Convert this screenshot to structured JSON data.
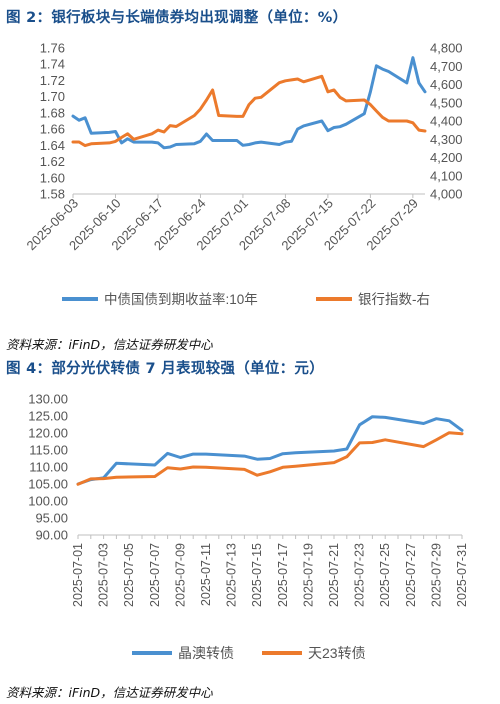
{
  "figure1": {
    "title": "图 2：银行板块与长端债券均出现调整（单位：%）",
    "source": "资料来源：iFinD，信达证券研发中心",
    "chart_data": {
      "type": "line",
      "x_ticks": [
        "2025-06-03",
        "2025-06-10",
        "2025-06-17",
        "2025-06-24",
        "2025-07-01",
        "2025-07-08",
        "2025-07-15",
        "2025-07-22",
        "2025-07-29"
      ],
      "y_left": {
        "min": 1.58,
        "max": 1.76,
        "ticks": [
          "1.58",
          "1.60",
          "1.62",
          "1.64",
          "1.66",
          "1.68",
          "1.70",
          "1.72",
          "1.74",
          "1.76"
        ]
      },
      "y_right": {
        "min": 4000,
        "max": 4800,
        "ticks": [
          "4,000",
          "4,100",
          "4,200",
          "4,300",
          "4,400",
          "4,500",
          "4,600",
          "4,700",
          "4,800"
        ]
      },
      "grid": false,
      "legend_position": "bottom",
      "series": [
        {
          "name": "中债国债到期收益率:10年",
          "axis": "left",
          "color": "#4a90d0",
          "values": [
            [
              "2025-06-03",
              1.676
            ],
            [
              "2025-06-04",
              1.671
            ],
            [
              "2025-06-05",
              1.674
            ],
            [
              "2025-06-06",
              1.655
            ],
            [
              "2025-06-09",
              1.656
            ],
            [
              "2025-06-10",
              1.657
            ],
            [
              "2025-06-11",
              1.643
            ],
            [
              "2025-06-12",
              1.648
            ],
            [
              "2025-06-13",
              1.644
            ],
            [
              "2025-06-16",
              1.644
            ],
            [
              "2025-06-17",
              1.643
            ],
            [
              "2025-06-18",
              1.637
            ],
            [
              "2025-06-19",
              1.638
            ],
            [
              "2025-06-20",
              1.641
            ],
            [
              "2025-06-23",
              1.642
            ],
            [
              "2025-06-24",
              1.645
            ],
            [
              "2025-06-25",
              1.654
            ],
            [
              "2025-06-26",
              1.646
            ],
            [
              "2025-06-27",
              1.646
            ],
            [
              "2025-06-30",
              1.646
            ],
            [
              "2025-07-01",
              1.64
            ],
            [
              "2025-07-02",
              1.641
            ],
            [
              "2025-07-03",
              1.643
            ],
            [
              "2025-07-04",
              1.644
            ],
            [
              "2025-07-07",
              1.641
            ],
            [
              "2025-07-08",
              1.644
            ],
            [
              "2025-07-09",
              1.645
            ],
            [
              "2025-07-10",
              1.66
            ],
            [
              "2025-07-11",
              1.664
            ],
            [
              "2025-07-14",
              1.67
            ],
            [
              "2025-07-15",
              1.658
            ],
            [
              "2025-07-16",
              1.662
            ],
            [
              "2025-07-17",
              1.663
            ],
            [
              "2025-07-18",
              1.666
            ],
            [
              "2025-07-21",
              1.679
            ],
            [
              "2025-07-22",
              1.706
            ],
            [
              "2025-07-23",
              1.738
            ],
            [
              "2025-07-24",
              1.734
            ],
            [
              "2025-07-25",
              1.731
            ],
            [
              "2025-07-28",
              1.717
            ],
            [
              "2025-07-29",
              1.748
            ],
            [
              "2025-07-30",
              1.717
            ],
            [
              "2025-07-31",
              1.706
            ]
          ]
        },
        {
          "name": "银行指数-右",
          "axis": "right",
          "color": "#ec7a2c",
          "values": [
            [
              "2025-06-03",
              4285
            ],
            [
              "2025-06-04",
              4285
            ],
            [
              "2025-06-05",
              4265
            ],
            [
              "2025-06-06",
              4275
            ],
            [
              "2025-06-09",
              4280
            ],
            [
              "2025-06-10",
              4288
            ],
            [
              "2025-06-11",
              4310
            ],
            [
              "2025-06-12",
              4330
            ],
            [
              "2025-06-13",
              4300
            ],
            [
              "2025-06-16",
              4330
            ],
            [
              "2025-06-17",
              4350
            ],
            [
              "2025-06-18",
              4340
            ],
            [
              "2025-06-19",
              4375
            ],
            [
              "2025-06-20",
              4370
            ],
            [
              "2025-06-23",
              4430
            ],
            [
              "2025-06-24",
              4465
            ],
            [
              "2025-06-25",
              4515
            ],
            [
              "2025-06-26",
              4570
            ],
            [
              "2025-06-27",
              4430
            ],
            [
              "2025-06-30",
              4425
            ],
            [
              "2025-07-01",
              4425
            ],
            [
              "2025-07-02",
              4490
            ],
            [
              "2025-07-03",
              4525
            ],
            [
              "2025-07-04",
              4530
            ],
            [
              "2025-07-07",
              4610
            ],
            [
              "2025-07-08",
              4620
            ],
            [
              "2025-07-09",
              4625
            ],
            [
              "2025-07-10",
              4630
            ],
            [
              "2025-07-11",
              4615
            ],
            [
              "2025-07-14",
              4645
            ],
            [
              "2025-07-15",
              4560
            ],
            [
              "2025-07-16",
              4570
            ],
            [
              "2025-07-17",
              4530
            ],
            [
              "2025-07-18",
              4510
            ],
            [
              "2025-07-21",
              4515
            ],
            [
              "2025-07-22",
              4490
            ],
            [
              "2025-07-23",
              4455
            ],
            [
              "2025-07-24",
              4420
            ],
            [
              "2025-07-25",
              4400
            ],
            [
              "2025-07-28",
              4400
            ],
            [
              "2025-07-29",
              4390
            ],
            [
              "2025-07-30",
              4350
            ],
            [
              "2025-07-31",
              4345
            ]
          ]
        }
      ]
    }
  },
  "figure2": {
    "title": "图 4：部分光伏转债 7 月表现较强（单位：元）",
    "source": "资料来源：iFinD，信达证券研发中心",
    "chart_data": {
      "type": "line",
      "categories": [
        "2025-07-01",
        "2025-07-02",
        "2025-07-03",
        "2025-07-04",
        "2025-07-05",
        "2025-07-06",
        "2025-07-07",
        "2025-07-08",
        "2025-07-09",
        "2025-07-10",
        "2025-07-11",
        "2025-07-12",
        "2025-07-13",
        "2025-07-14",
        "2025-07-15",
        "2025-07-16",
        "2025-07-17",
        "2025-07-18",
        "2025-07-19",
        "2025-07-20",
        "2025-07-21",
        "2025-07-22",
        "2025-07-23",
        "2025-07-24",
        "2025-07-25",
        "2025-07-26",
        "2025-07-27",
        "2025-07-28",
        "2025-07-29",
        "2025-07-30",
        "2025-07-31"
      ],
      "tick_labels": [
        "2025-07-01",
        "2025-07-03",
        "2025-07-05",
        "2025-07-07",
        "2025-07-09",
        "2025-07-11",
        "2025-07-13",
        "2025-07-15",
        "2025-07-17",
        "2025-07-19",
        "2025-07-21",
        "2025-07-23",
        "2025-07-25",
        "2025-07-27",
        "2025-07-29",
        "2025-07-31"
      ],
      "y": {
        "min": 90,
        "max": 130,
        "ticks": [
          "90.00",
          "95.00",
          "100.00",
          "105.00",
          "110.00",
          "115.00",
          "120.00",
          "125.00",
          "130.00"
        ]
      },
      "grid": false,
      "legend_position": "bottom",
      "series": [
        {
          "name": "晶澳转债",
          "color": "#4a90d0",
          "points": [
            [
              "2025-07-01",
              105.0
            ],
            [
              "2025-07-02",
              106.3
            ],
            [
              "2025-07-03",
              106.8
            ],
            [
              "2025-07-04",
              111.1
            ],
            [
              "2025-07-07",
              110.6
            ],
            [
              "2025-07-08",
              114.0
            ],
            [
              "2025-07-09",
              112.8
            ],
            [
              "2025-07-10",
              113.8
            ],
            [
              "2025-07-11",
              113.8
            ],
            [
              "2025-07-14",
              113.2
            ],
            [
              "2025-07-15",
              112.3
            ],
            [
              "2025-07-16",
              112.5
            ],
            [
              "2025-07-17",
              113.9
            ],
            [
              "2025-07-18",
              114.2
            ],
            [
              "2025-07-21",
              114.7
            ],
            [
              "2025-07-22",
              115.3
            ],
            [
              "2025-07-23",
              122.4
            ],
            [
              "2025-07-24",
              124.8
            ],
            [
              "2025-07-25",
              124.6
            ],
            [
              "2025-07-28",
              122.8
            ],
            [
              "2025-07-29",
              124.2
            ],
            [
              "2025-07-30",
              123.6
            ],
            [
              "2025-07-31",
              120.8
            ]
          ]
        },
        {
          "name": "天23转债",
          "color": "#ec7a2c",
          "points": [
            [
              "2025-07-01",
              104.9
            ],
            [
              "2025-07-02",
              106.5
            ],
            [
              "2025-07-03",
              106.6
            ],
            [
              "2025-07-04",
              107.0
            ],
            [
              "2025-07-07",
              107.2
            ],
            [
              "2025-07-08",
              109.8
            ],
            [
              "2025-07-09",
              109.4
            ],
            [
              "2025-07-10",
              110.0
            ],
            [
              "2025-07-11",
              109.9
            ],
            [
              "2025-07-14",
              109.3
            ],
            [
              "2025-07-15",
              107.6
            ],
            [
              "2025-07-16",
              108.6
            ],
            [
              "2025-07-17",
              109.9
            ],
            [
              "2025-07-18",
              110.2
            ],
            [
              "2025-07-21",
              111.3
            ],
            [
              "2025-07-22",
              113.0
            ],
            [
              "2025-07-23",
              117.1
            ],
            [
              "2025-07-24",
              117.2
            ],
            [
              "2025-07-25",
              118.0
            ],
            [
              "2025-07-28",
              116.0
            ],
            [
              "2025-07-29",
              118.0
            ],
            [
              "2025-07-30",
              120.1
            ],
            [
              "2025-07-31",
              119.8
            ]
          ]
        }
      ]
    }
  }
}
